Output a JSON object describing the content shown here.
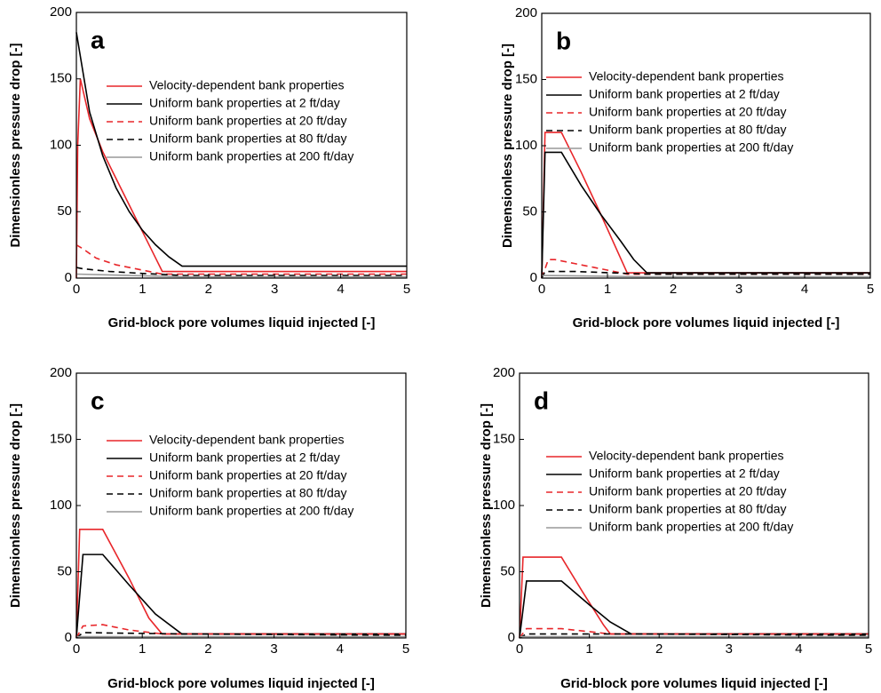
{
  "chart_data": [
    {
      "type": "line",
      "annotation": "a",
      "xlabel": "Grid-block pore volumes liquid injected [-]",
      "ylabel": "Dimensionless pressure drop [-]",
      "xlim": [
        0,
        5
      ],
      "ylim": [
        0,
        200
      ],
      "xticks": [
        0,
        1,
        2,
        3,
        4,
        5
      ],
      "yticks": [
        0,
        50,
        100,
        150,
        200
      ],
      "series": [
        {
          "name": "Velocity-dependent bank properties",
          "color": "#e8262a",
          "style": "solid",
          "x": [
            0,
            0.02,
            0.06,
            0.2,
            0.4,
            0.6,
            0.8,
            1.0,
            1.2,
            1.3,
            5
          ],
          "values": [
            0,
            100,
            150,
            120,
            95,
            75,
            55,
            35,
            15,
            5,
            5
          ]
        },
        {
          "name": "Uniform bank properties at 2 ft/day",
          "color": "#000000",
          "style": "solid",
          "x": [
            0,
            0.05,
            0.2,
            0.4,
            0.6,
            0.8,
            1.0,
            1.2,
            1.4,
            1.6,
            5
          ],
          "values": [
            185,
            170,
            125,
            92,
            68,
            50,
            36,
            25,
            16,
            9,
            9
          ]
        },
        {
          "name": "Uniform bank properties at 20 ft/day",
          "color": "#e8262a",
          "style": "dashed",
          "x": [
            0,
            0.1,
            0.3,
            0.6,
            1.0,
            1.3,
            5
          ],
          "values": [
            25,
            22,
            15,
            10,
            6,
            3,
            3
          ]
        },
        {
          "name": "Uniform bank properties at 80 ft/day",
          "color": "#000000",
          "style": "dashed",
          "x": [
            0,
            0.1,
            0.5,
            1.0,
            1.6,
            5
          ],
          "values": [
            8,
            7,
            5,
            3.5,
            2,
            2
          ]
        },
        {
          "name": "Uniform bank properties at 200 ft/day",
          "color": "#999999",
          "style": "solid",
          "x": [
            0,
            1.6,
            5
          ],
          "values": [
            3,
            1,
            1
          ]
        }
      ]
    },
    {
      "type": "line",
      "annotation": "b",
      "xlabel": "Grid-block pore volumes liquid injected [-]",
      "ylabel": "Dimensionless pressure drop [-]",
      "xlim": [
        0,
        5
      ],
      "ylim": [
        0,
        200
      ],
      "xticks": [
        0,
        1,
        2,
        3,
        4,
        5
      ],
      "yticks": [
        0,
        50,
        100,
        150,
        200
      ],
      "series": [
        {
          "name": "Velocity-dependent bank properties",
          "color": "#e8262a",
          "style": "solid",
          "x": [
            0,
            0.05,
            0.1,
            0.3,
            0.6,
            0.9,
            1.2,
            1.3,
            5
          ],
          "values": [
            0,
            110,
            110,
            110,
            80,
            48,
            15,
            4,
            4
          ]
        },
        {
          "name": "Uniform bank properties at 2 ft/day",
          "color": "#000000",
          "style": "solid",
          "x": [
            0,
            0.05,
            0.1,
            0.3,
            0.6,
            0.9,
            1.2,
            1.4,
            1.6,
            5
          ],
          "values": [
            0,
            95,
            95,
            95,
            70,
            48,
            28,
            14,
            4,
            4
          ]
        },
        {
          "name": "Uniform bank properties at 20 ft/day",
          "color": "#e8262a",
          "style": "dashed",
          "x": [
            0,
            0.1,
            0.2,
            0.5,
            0.8,
            1.1,
            1.3,
            5
          ],
          "values": [
            0,
            14,
            14,
            11,
            8,
            5,
            3,
            3
          ]
        },
        {
          "name": "Uniform bank properties at 80 ft/day",
          "color": "#000000",
          "style": "dashed",
          "x": [
            0,
            0.05,
            0.5,
            1.6,
            5
          ],
          "values": [
            0,
            5,
            5,
            3,
            3
          ]
        },
        {
          "name": "Uniform bank properties at 200 ft/day",
          "color": "#999999",
          "style": "solid",
          "x": [
            0,
            1.6,
            5
          ],
          "values": [
            2,
            1,
            1
          ]
        }
      ]
    },
    {
      "type": "line",
      "annotation": "c",
      "xlabel": "Grid-block pore volumes liquid injected [-]",
      "ylabel": "Dimensionless pressure drop [-]",
      "xlim": [
        0,
        5
      ],
      "ylim": [
        0,
        200
      ],
      "xticks": [
        0,
        1,
        2,
        3,
        4,
        5
      ],
      "yticks": [
        0,
        50,
        100,
        150,
        200
      ],
      "series": [
        {
          "name": "Velocity-dependent bank properties",
          "color": "#e8262a",
          "style": "solid",
          "x": [
            0,
            0.05,
            0.1,
            0.4,
            0.8,
            1.1,
            1.3,
            5
          ],
          "values": [
            0,
            82,
            82,
            82,
            45,
            15,
            3,
            3
          ]
        },
        {
          "name": "Uniform bank properties at 2 ft/day",
          "color": "#000000",
          "style": "solid",
          "x": [
            0,
            0.1,
            0.4,
            0.8,
            1.2,
            1.6,
            5
          ],
          "values": [
            0,
            63,
            63,
            40,
            18,
            3,
            3
          ]
        },
        {
          "name": "Uniform bank properties at 20 ft/day",
          "color": "#e8262a",
          "style": "dashed",
          "x": [
            0,
            0.1,
            0.4,
            0.8,
            1.3,
            5
          ],
          "values": [
            0,
            9,
            10,
            6,
            3,
            3
          ]
        },
        {
          "name": "Uniform bank properties at 80 ft/day",
          "color": "#000000",
          "style": "dashed",
          "x": [
            0,
            0.1,
            1.6,
            5
          ],
          "values": [
            0,
            4,
            3,
            2
          ]
        },
        {
          "name": "Uniform bank properties at 200 ft/day",
          "color": "#999999",
          "style": "solid",
          "x": [
            0,
            5
          ],
          "values": [
            1,
            1
          ]
        }
      ]
    },
    {
      "type": "line",
      "annotation": "d",
      "xlabel": "Grid-block pore volumes liquid injected [-]",
      "ylabel": "Dimensionless pressure drop [-]",
      "xlim": [
        0,
        5
      ],
      "ylim": [
        0,
        200
      ],
      "xticks": [
        0,
        1,
        2,
        3,
        4,
        5
      ],
      "yticks": [
        0,
        50,
        100,
        150,
        200
      ],
      "series": [
        {
          "name": "Velocity-dependent bank properties",
          "color": "#e8262a",
          "style": "solid",
          "x": [
            0,
            0.05,
            0.1,
            0.6,
            0.9,
            1.2,
            1.3,
            5
          ],
          "values": [
            0,
            61,
            61,
            61,
            35,
            10,
            3,
            3
          ]
        },
        {
          "name": "Uniform bank properties at 2 ft/day",
          "color": "#000000",
          "style": "solid",
          "x": [
            0,
            0.1,
            0.6,
            1.0,
            1.3,
            1.6,
            5
          ],
          "values": [
            0,
            43,
            43,
            25,
            12,
            3,
            3
          ]
        },
        {
          "name": "Uniform bank properties at 20 ft/day",
          "color": "#e8262a",
          "style": "dashed",
          "x": [
            0,
            0.1,
            0.6,
            1.3,
            5
          ],
          "values": [
            0,
            7,
            7,
            3,
            3
          ]
        },
        {
          "name": "Uniform bank properties at 80 ft/day",
          "color": "#000000",
          "style": "dashed",
          "x": [
            0,
            0.1,
            1.6,
            5
          ],
          "values": [
            0,
            3,
            3,
            2
          ]
        },
        {
          "name": "Uniform bank properties at 200 ft/day",
          "color": "#999999",
          "style": "solid",
          "x": [
            0,
            5
          ],
          "values": [
            1,
            1
          ]
        }
      ]
    }
  ]
}
